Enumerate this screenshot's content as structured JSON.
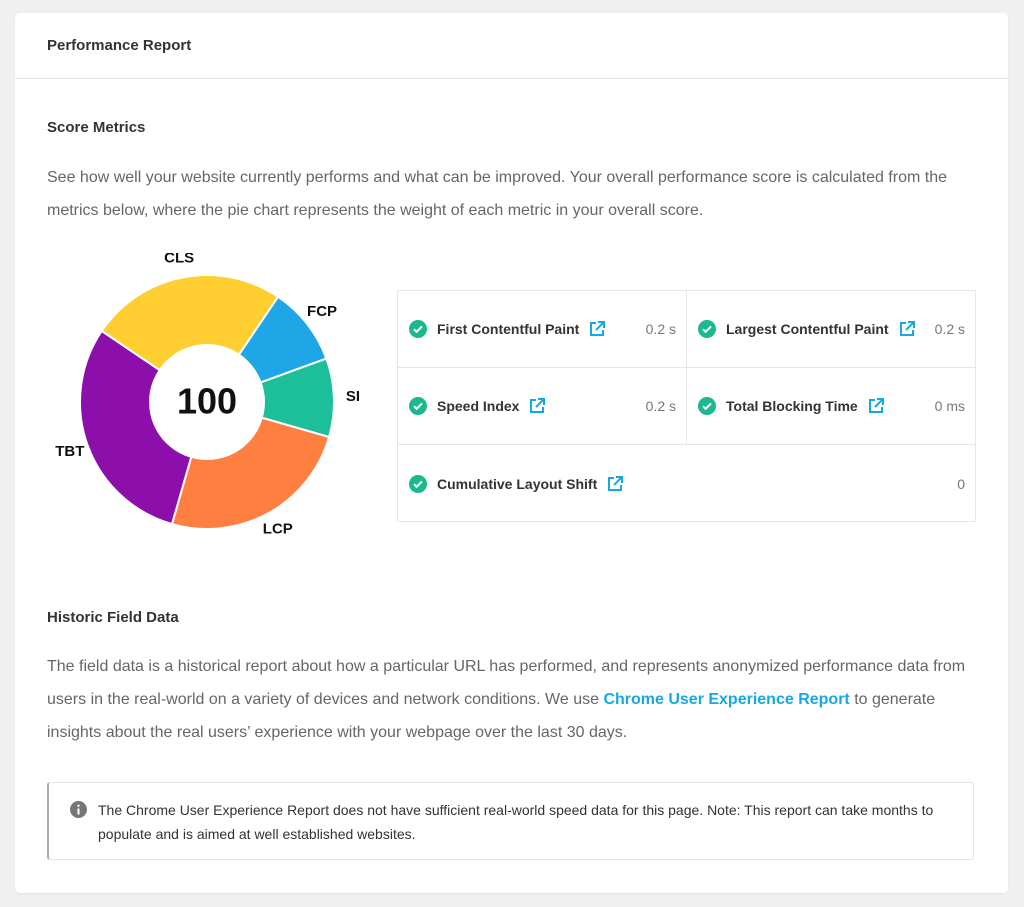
{
  "header": {
    "title": "Performance Report"
  },
  "score_metrics": {
    "title": "Score Metrics",
    "description": "See how well your website currently performs and what can be improved. Your overall performance score is calculated from the metrics below, where the pie chart represents the weight of each metric in your overall score."
  },
  "chart_data": {
    "type": "pie",
    "center_label": 100,
    "categories": [
      "FCP",
      "SI",
      "LCP",
      "TBT",
      "CLS"
    ],
    "values": [
      10,
      10,
      25,
      30,
      25
    ],
    "colors": [
      "#1fa6e6",
      "#1dbf9b",
      "#ff7f41",
      "#8c0fac",
      "#ffcf31"
    ]
  },
  "metrics": [
    {
      "name": "First Contentful Paint",
      "value": "0.2 s"
    },
    {
      "name": "Largest Contentful Paint",
      "value": "0.2 s"
    },
    {
      "name": "Speed Index",
      "value": "0.2 s"
    },
    {
      "name": "Total Blocking Time",
      "value": "0 ms"
    },
    {
      "name": "Cumulative Layout Shift",
      "value": "0"
    }
  ],
  "historic": {
    "title": "Historic Field Data",
    "text_before": "The field data is a historical report about how a particular URL has performed, and represents anonymized performance data from users in the real-world on a variety of devices and network conditions. We use ",
    "link": "Chrome User Experience Report",
    "text_after": " to generate insights about the real users’ experience with your webpage over the last 30 days.",
    "notice": "The Chrome User Experience Report does not have sufficient real-world speed data for this page. Note: This report can take months to populate and is aimed at well established websites."
  }
}
